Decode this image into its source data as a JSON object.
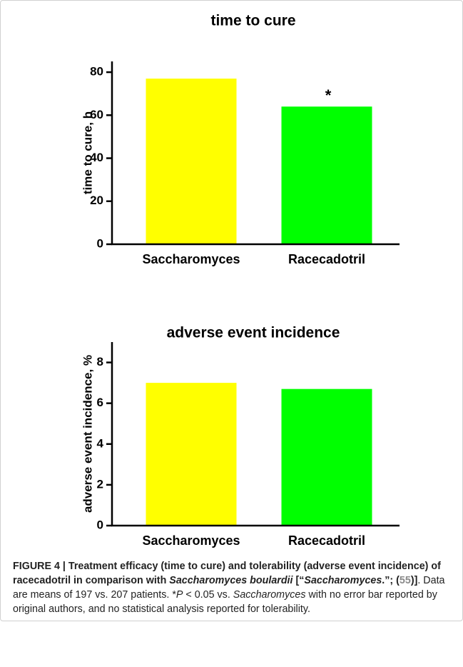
{
  "chart_data": [
    {
      "type": "bar",
      "title": "time to cure",
      "y_label": "time to cure, h",
      "categories": [
        "Saccharomyces",
        "Racecadotril"
      ],
      "values": [
        77,
        64
      ],
      "colors": [
        "#ffff00",
        "#00ff00"
      ],
      "ylim": [
        0,
        85
      ],
      "yticks": [
        0,
        20,
        40,
        60,
        80
      ],
      "annotation": "*"
    },
    {
      "type": "bar",
      "title": "adverse event incidence",
      "y_label": "adverse event incidence, %",
      "categories": [
        "Saccharomyces",
        "Racecadotril"
      ],
      "values": [
        7.0,
        6.7
      ],
      "colors": [
        "#ffff00",
        "#00ff00"
      ],
      "ylim": [
        0,
        9
      ],
      "yticks": [
        0,
        2,
        4,
        6,
        8
      ]
    }
  ],
  "caption": [
    {
      "text": "FIGURE 4 | Treatment efficacy (time to cure) and tolerability (adverse event incidence) of racecadotril in comparison with ",
      "bold": true
    },
    {
      "text": "Saccharomyces boulardii",
      "bold": true,
      "italic": true
    },
    {
      "text": " [“",
      "bold": true
    },
    {
      "text": "Saccharomyces",
      "bold": true,
      "italic": true
    },
    {
      "text": ".”; (",
      "bold": true
    },
    {
      "text": "55",
      "bold": true,
      "color": "#8a8a8a"
    },
    {
      "text": ")]",
      "bold": true
    },
    {
      "text": ". Data are means of 197 vs. 207 patients. *"
    },
    {
      "text": "P",
      "italic": true
    },
    {
      "text": " < 0.05 vs. "
    },
    {
      "text": "Saccharomyces",
      "italic": true
    },
    {
      "text": " with no error bar reported by original authors, and no statistical analysis reported for tolerability."
    }
  ]
}
